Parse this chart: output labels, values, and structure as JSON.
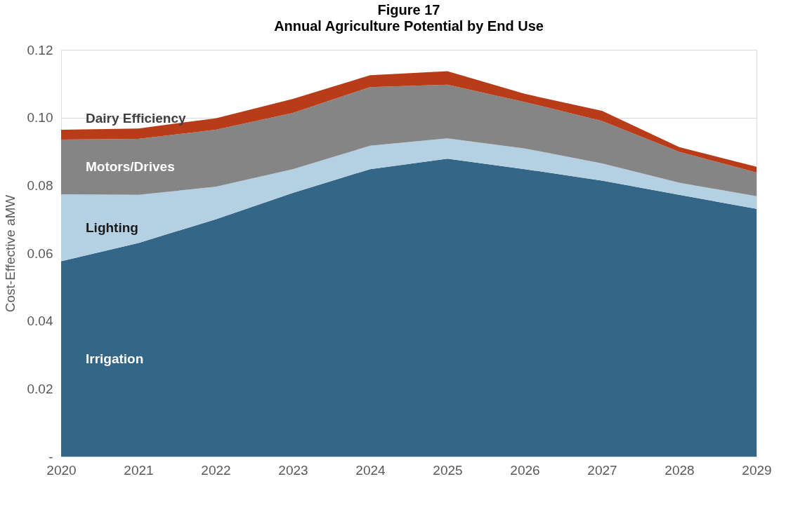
{
  "chart_data": {
    "type": "area",
    "stacked": true,
    "title": "Figure 17",
    "subtitle": "Annual Agriculture Potential by End Use",
    "ylabel": "Cost-Effective aMW",
    "categories": [
      "2020",
      "2021",
      "2022",
      "2023",
      "2024",
      "2025",
      "2026",
      "2027",
      "2028",
      "2029"
    ],
    "series": [
      {
        "name": "Irrigation",
        "color": "#336687",
        "values": [
          0.0576,
          0.063,
          0.07,
          0.0778,
          0.0848,
          0.0879,
          0.0848,
          0.0814,
          0.0772,
          0.0731
        ]
      },
      {
        "name": "Lighting",
        "color": "#b4d0e2",
        "values": [
          0.0198,
          0.0142,
          0.0096,
          0.007,
          0.0069,
          0.006,
          0.0061,
          0.0051,
          0.0036,
          0.0037
        ]
      },
      {
        "name": "Motors/Drives",
        "color": "#858585",
        "values": [
          0.0161,
          0.0165,
          0.0168,
          0.0166,
          0.0173,
          0.0158,
          0.0137,
          0.0125,
          0.0091,
          0.007
        ]
      },
      {
        "name": "Dairy Efficiency",
        "color": "#b83c18",
        "values": [
          0.0029,
          0.0031,
          0.0034,
          0.0041,
          0.0035,
          0.004,
          0.0024,
          0.003,
          0.0014,
          0.0017
        ]
      }
    ],
    "ylim": [
      0,
      0.12
    ],
    "yticks": [
      {
        "value": 0,
        "label": "-"
      },
      {
        "value": 0.02,
        "label": "0.02"
      },
      {
        "value": 0.04,
        "label": "0.04"
      },
      {
        "value": 0.06,
        "label": "0.06"
      },
      {
        "value": 0.08,
        "label": "0.08"
      },
      {
        "value": 0.1,
        "label": "0.10"
      },
      {
        "value": 0.12,
        "label": "0.12"
      }
    ],
    "grid": "y"
  }
}
